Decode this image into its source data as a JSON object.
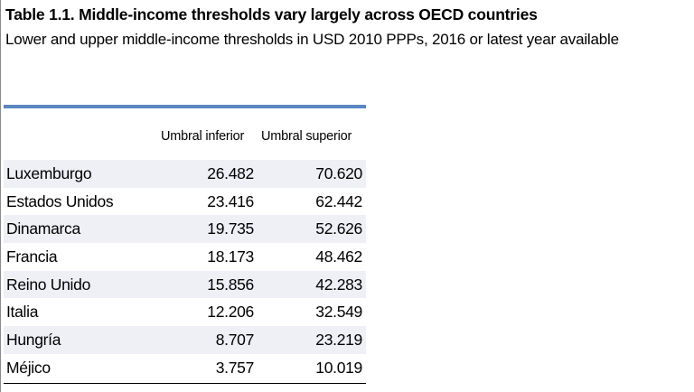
{
  "title": "Table 1.1. Middle-income thresholds vary largely across OECD countries",
  "subtitle": "Lower and upper middle-income thresholds in USD 2010 PPPs, 2016 or latest year available",
  "columns": {
    "lower": "Umbral inferior",
    "upper": "Umbral superior"
  },
  "rows": [
    {
      "country": "Luxemburgo",
      "lower": "26.482",
      "upper": "70.620"
    },
    {
      "country": "Estados Unidos",
      "lower": "23.416",
      "upper": "62.442"
    },
    {
      "country": "Dinamarca",
      "lower": "19.735",
      "upper": "52.626"
    },
    {
      "country": "Francia",
      "lower": "18.173",
      "upper": "48.462"
    },
    {
      "country": "Reino Unido",
      "lower": "15.856",
      "upper": "42.283"
    },
    {
      "country": "Italia",
      "lower": "12.206",
      "upper": "32.549"
    },
    {
      "country": "Hungría",
      "lower": "8.707",
      "upper": "23.219"
    },
    {
      "country": "Méjico",
      "lower": "3.757",
      "upper": "10.019"
    }
  ],
  "colors": {
    "accent_bar": "#5b86c2",
    "row_shade": "#eef0f6"
  }
}
